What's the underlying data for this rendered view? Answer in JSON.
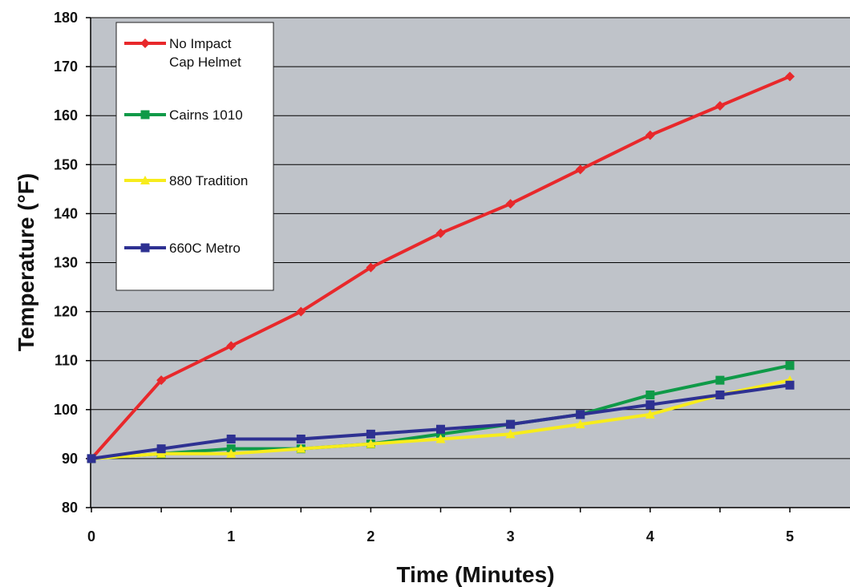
{
  "chart_data": {
    "type": "line",
    "title": "",
    "xlabel": "Time (Minutes)",
    "ylabel": "Temperature (°F)",
    "xlim": [
      0,
      5
    ],
    "ylim": [
      80,
      180
    ],
    "x_ticks": [
      "0",
      "1",
      "2",
      "3",
      "4",
      "5"
    ],
    "y_ticks": [
      "80",
      "90",
      "100",
      "110",
      "120",
      "130",
      "140",
      "150",
      "160",
      "170",
      "180"
    ],
    "grid": "horizontal",
    "legend_position": "top-left",
    "plot_background": "#bfc3c9",
    "x": [
      0,
      0.5,
      1,
      1.5,
      2,
      2.5,
      3,
      3.5,
      4,
      4.5,
      5
    ],
    "series": [
      {
        "name_lines": [
          "No Impact",
          "Cap Helmet"
        ],
        "color": "#e8282b",
        "marker": "diamond",
        "values": [
          90,
          106,
          113,
          120,
          129,
          136,
          142,
          149,
          156,
          162,
          168
        ]
      },
      {
        "name_lines": [
          "Cairns 1010"
        ],
        "color": "#0f9a48",
        "marker": "square",
        "values": [
          90,
          91,
          92,
          92,
          93,
          95,
          97,
          99,
          103,
          106,
          109
        ]
      },
      {
        "name_lines": [
          "880 Tradition"
        ],
        "color": "#f7ec1c",
        "marker": "triangle",
        "values": [
          90,
          91,
          91,
          92,
          93,
          94,
          95,
          97,
          99,
          103,
          106
        ]
      },
      {
        "name_lines": [
          "660C Metro"
        ],
        "color": "#2e3192",
        "marker": "square",
        "values": [
          90,
          92,
          94,
          94,
          95,
          96,
          97,
          99,
          101,
          103,
          105
        ]
      }
    ]
  }
}
